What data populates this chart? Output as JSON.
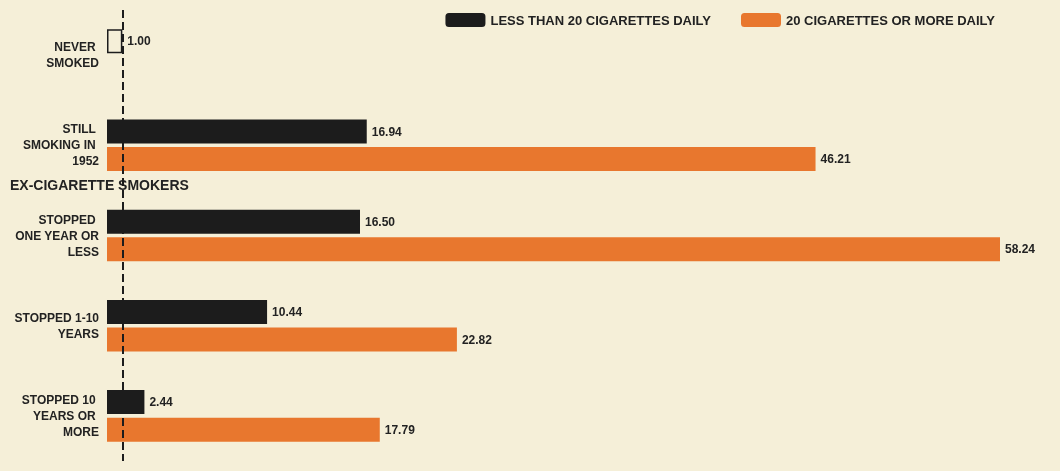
{
  "chart_data": {
    "type": "bar",
    "orientation": "horizontal",
    "categories": [
      "NEVER SMOKED",
      "STILL SMOKING IN 1952",
      "STOPPED ONE YEAR OR LESS",
      "STOPPED 1-10 YEARS",
      "STOPPED 10 YEARS OR MORE"
    ],
    "series": [
      {
        "color": "#f5efd8",
        "values": [
          1.0,
          null,
          null,
          null,
          null
        ],
        "value_labels": [
          "1.00",
          null,
          null,
          null,
          null
        ]
      },
      {
        "name": "LESS THAN 20 CIGARETTES DAILY",
        "color": "#1c1c1c",
        "values": [
          null,
          16.94,
          16.5,
          10.44,
          2.44
        ],
        "value_labels": [
          null,
          "16.94",
          "16.50",
          "10.44",
          "2.44"
        ]
      },
      {
        "name": "20 CIGARETTES OR MORE DAILY",
        "color": "#e8772e",
        "values": [
          null,
          46.21,
          58.24,
          22.82,
          17.79
        ],
        "value_labels": [
          null,
          "46.21",
          "58.24",
          "22.82",
          "17.79"
        ]
      }
    ],
    "tick_labels": "y",
    "legend": "top right",
    "ref_lines": [
      {
        "axis": "x",
        "value": 1,
        "color": "#1c1c1c",
        "line_style": "dashed"
      }
    ],
    "annotations": [
      "EX-CIGARETTE SMOKERS"
    ]
  }
}
